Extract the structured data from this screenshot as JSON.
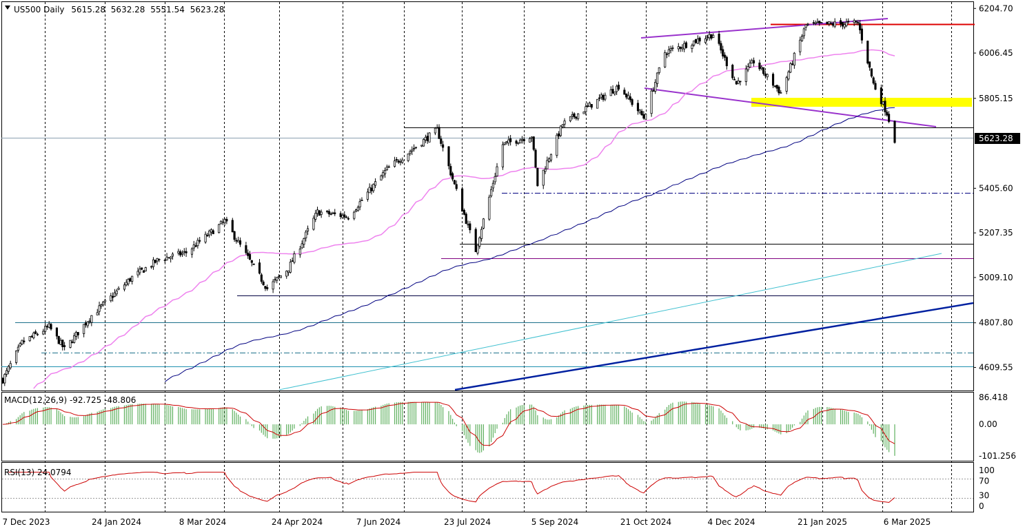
{
  "chart_data": {
    "type": "candlestick",
    "symbol": "US500",
    "timeframe": "Daily",
    "ohlc_readout": {
      "open": "5615.28",
      "high": "5632.28",
      "low": "5551.54",
      "close": "5623.28"
    },
    "last_price_label": "5623.28",
    "price_axis_ticks": [
      "6204.70",
      "6006.45",
      "5805.15",
      "5623.28",
      "5405.60",
      "5207.35",
      "5009.10",
      "4807.80",
      "4609.55"
    ],
    "price_axis_range": [
      4510,
      6230
    ],
    "date_axis_ticks": [
      "7 Dec 2023",
      "24 Jan 2024",
      "8 Mar 2024",
      "24 Apr 2024",
      "7 Jun 2024",
      "23 Jul 2024",
      "5 Sep 2024",
      "21 Oct 2024",
      "4 Dec 2024",
      "21 Jan 2025",
      "6 Mar 2025"
    ],
    "price_path_keypoints": [
      [
        "2023-12-04",
        4555
      ],
      [
        "2023-12-14",
        4720
      ],
      [
        "2023-12-28",
        4790
      ],
      [
        "2024-01-05",
        4690
      ],
      [
        "2024-01-19",
        4840
      ],
      [
        "2024-02-09",
        5010
      ],
      [
        "2024-02-23",
        5090
      ],
      [
        "2024-03-08",
        5120
      ],
      [
        "2024-03-28",
        5260
      ],
      [
        "2024-04-19",
        4960
      ],
      [
        "2024-04-30",
        5050
      ],
      [
        "2024-05-15",
        5300
      ],
      [
        "2024-05-31",
        5280
      ],
      [
        "2024-06-20",
        5490
      ],
      [
        "2024-07-16",
        5665
      ],
      [
        "2024-07-25",
        5420
      ],
      [
        "2024-08-05",
        5130
      ],
      [
        "2024-08-19",
        5600
      ],
      [
        "2024-09-03",
        5640
      ],
      [
        "2024-09-06",
        5420
      ],
      [
        "2024-09-19",
        5690
      ],
      [
        "2024-10-18",
        5860
      ],
      [
        "2024-10-31",
        5720
      ],
      [
        "2024-11-11",
        6010
      ],
      [
        "2024-12-06",
        6090
      ],
      [
        "2024-12-18",
        5870
      ],
      [
        "2024-12-27",
        5970
      ],
      [
        "2025-01-10",
        5830
      ],
      [
        "2025-01-23",
        6130
      ],
      [
        "2025-02-19",
        6140
      ],
      [
        "2025-02-27",
        5870
      ],
      [
        "2025-03-06",
        5740
      ],
      [
        "2025-03-10",
        5623
      ]
    ],
    "indicators": {
      "macd": {
        "label": "MACD(12,26,9) -92.725 -48.806",
        "params": [
          12,
          26,
          9
        ],
        "value": -92.725,
        "signal": -48.806,
        "axis_ticks": [
          "86.418",
          "0.00",
          "-101.256"
        ],
        "range": [
          -115,
          100
        ]
      },
      "rsi": {
        "label": "RSI(13) 24.0794",
        "period": 13,
        "value": 24.0794,
        "axis_ticks": [
          "100",
          "70",
          "30",
          "0"
        ],
        "levels": [
          70,
          30
        ],
        "range": [
          0,
          100
        ]
      }
    },
    "grid": "vertical-dashed",
    "colors": {
      "bull_candle": "#ffffff",
      "bear_candle": "#000000",
      "ma_fast": "#ee82ee",
      "ma_slow": "#000080",
      "macd_hist": "#5fb05f",
      "macd_signal": "#cc0000",
      "rsi_line": "#cc0000",
      "highlight_zone": "#ffff00",
      "resistance_line": "#dd0000"
    }
  }
}
